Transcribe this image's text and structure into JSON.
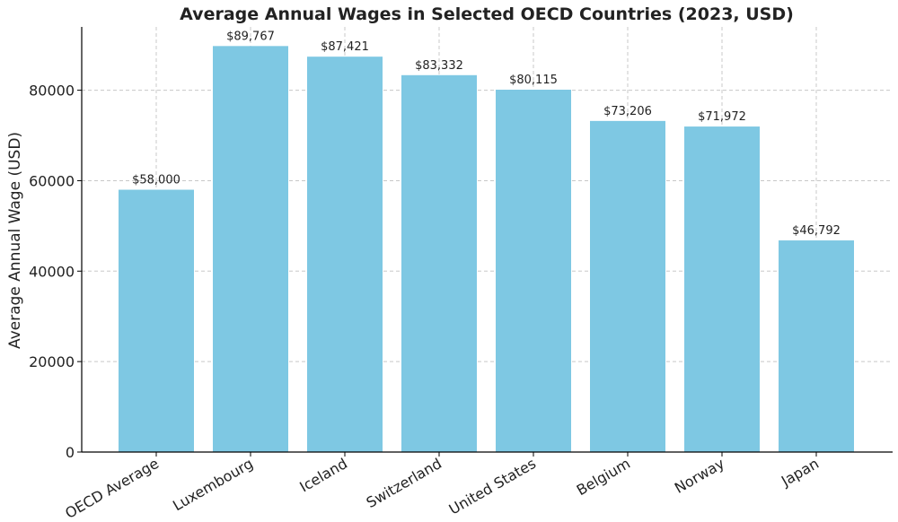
{
  "chart_data": {
    "type": "bar",
    "title": "Average Annual Wages in Selected OECD Countries (2023, USD)",
    "xlabel": "",
    "ylabel": "Average Annual Wage (USD)",
    "ylim": [
      0,
      94000
    ],
    "yticks": [
      0,
      20000,
      40000,
      60000,
      80000
    ],
    "grid": true,
    "bar_color": "#7ec8e3",
    "categories": [
      "OECD Average",
      "Luxembourg",
      "Iceland",
      "Switzerland",
      "United States",
      "Belgium",
      "Norway",
      "Japan"
    ],
    "values": [
      58000,
      89767,
      87421,
      83332,
      80115,
      73206,
      71972,
      46792
    ],
    "value_labels": [
      "$58,000",
      "$89,767",
      "$87,421",
      "$83,332",
      "$80,115",
      "$73,206",
      "$71,972",
      "$46,792"
    ]
  }
}
